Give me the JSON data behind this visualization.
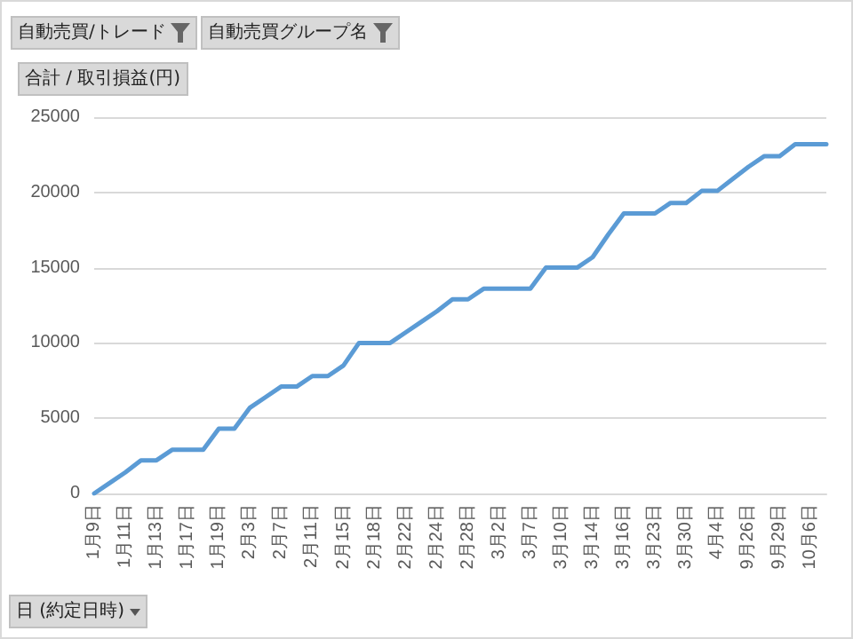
{
  "chart_data": {
    "type": "line",
    "ylabel": "合計 / 取引損益(円)",
    "xlabel": "日 (約定日時)",
    "annotations": [
      "自動売買/トレード",
      "自動売買グループ名"
    ],
    "categories": [
      "1月9日",
      null,
      "1月11日",
      null,
      "1月13日",
      null,
      "1月17日",
      null,
      "1月19日",
      null,
      "2月3日",
      null,
      "2月7日",
      null,
      "2月11日",
      null,
      "2月15日",
      null,
      "2月18日",
      null,
      "2月22日",
      null,
      "2月24日",
      null,
      "2月28日",
      null,
      "3月2日",
      null,
      "3月7日",
      null,
      "3月10日",
      null,
      "3月14日",
      null,
      "3月16日",
      null,
      "3月23日",
      null,
      "3月30日",
      null,
      "4月4日",
      null,
      "9月26日",
      null,
      "9月29日",
      null,
      "10月6日",
      null
    ],
    "series": [
      {
        "color": "#5b9bd5",
        "values": [
          0,
          700,
          1400,
          2200,
          2200,
          2900,
          2900,
          2900,
          4300,
          4300,
          5700,
          6400,
          7100,
          7100,
          7800,
          7800,
          8500,
          10000,
          10000,
          10000,
          10700,
          11400,
          12100,
          12900,
          12900,
          13600,
          13600,
          13600,
          13600,
          15000,
          15000,
          15000,
          15700,
          17200,
          18600,
          18600,
          18600,
          19300,
          19300,
          20100,
          20100,
          20900,
          21700,
          22400,
          22400,
          23200,
          23200,
          23200
        ]
      }
    ],
    "ylim": [
      0,
      25000
    ],
    "yticks": [
      0,
      5000,
      10000,
      15000,
      20000,
      25000
    ],
    "grid": "y",
    "marker": "none",
    "line_style": "solid"
  }
}
